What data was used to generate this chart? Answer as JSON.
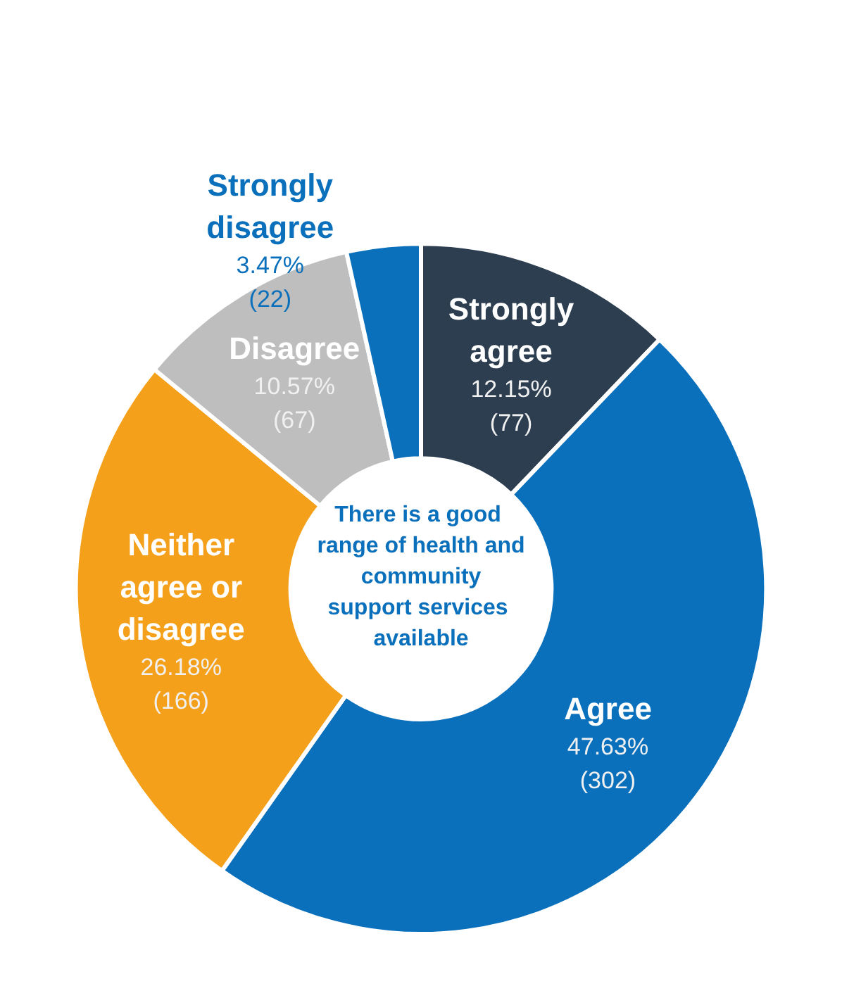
{
  "chart_data": {
    "type": "donut",
    "title": "There is a good range of health and community support services available",
    "categories": [
      "Strongly agree",
      "Agree",
      "Neither agree or disagree",
      "Disagree",
      "Strongly disagree"
    ],
    "values": [
      77,
      302,
      166,
      67,
      22
    ],
    "value_labels": [
      "12.15%\n(77)",
      "47.63%\n(302)",
      "26.18%\n(166)",
      "10.57%\n(67)",
      "3.47%\n(22)"
    ],
    "colors": [
      "#2c3e50",
      "#0a70bb",
      "#f5a01a",
      "#bebebe",
      "#0a70bb"
    ],
    "legend": false
  }
}
